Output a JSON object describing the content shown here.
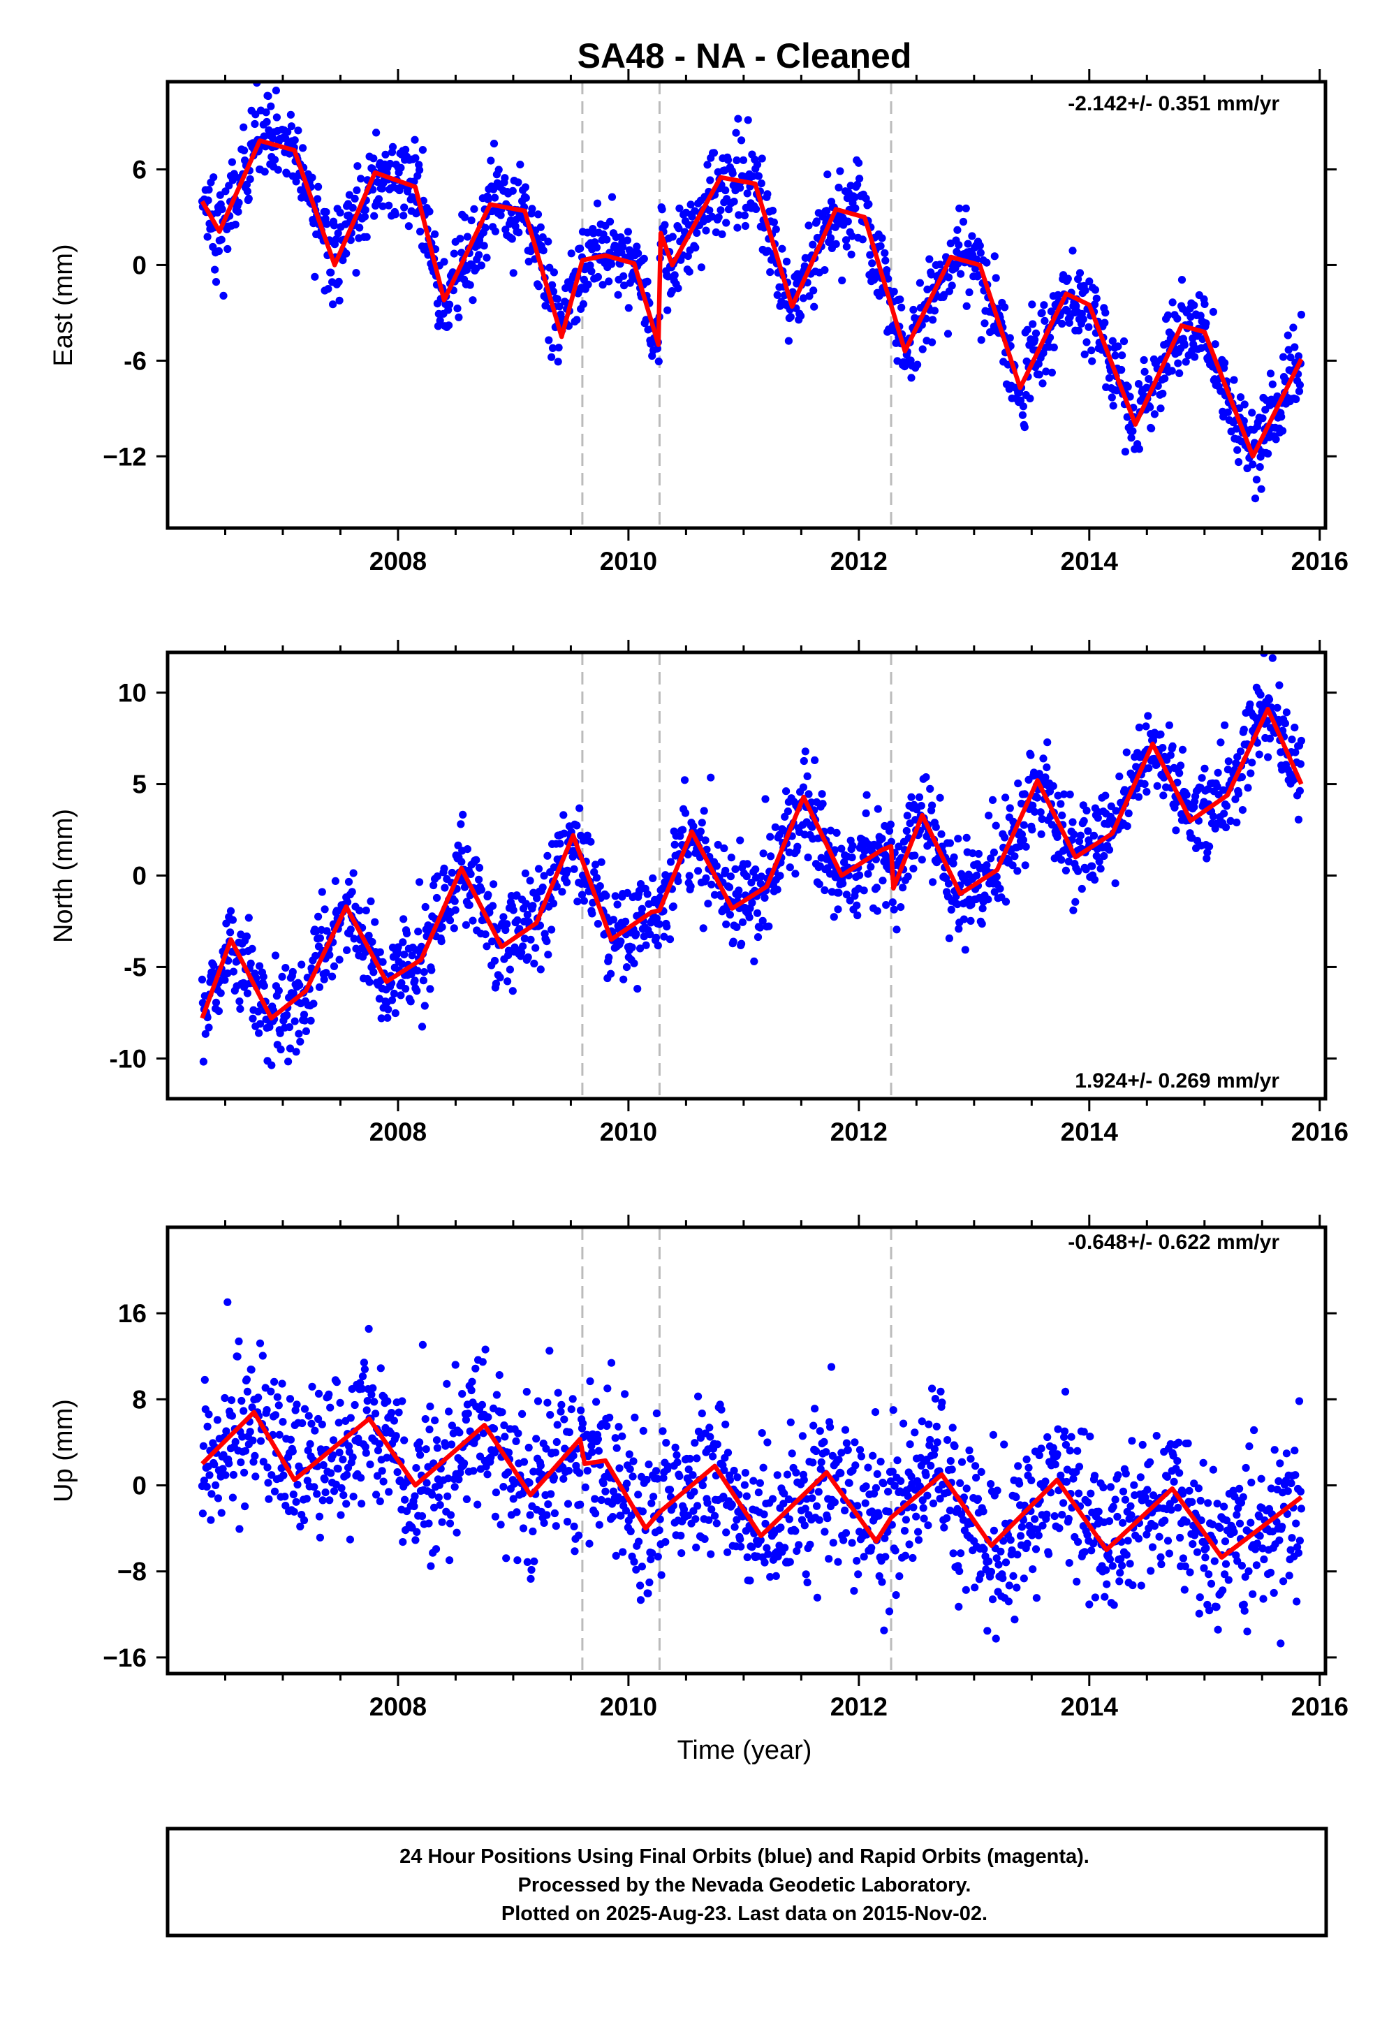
{
  "title": "SA48  - NA - Cleaned",
  "colors": {
    "data": "#0000ff",
    "model": "#ff0000",
    "axes": "#000000",
    "breaks": "#bbbbbb"
  },
  "footer": {
    "line1": "24 Hour Positions Using Final Orbits (blue) and Rapid Orbits (magenta).",
    "line2": "Processed by the Nevada Geodetic Laboratory.",
    "line3": "Plotted on 2025-Aug-23. Last data on 2015-Nov-02."
  },
  "chart_data": [
    {
      "type": "scatter",
      "ylabel": "East (mm)",
      "xlabel": "",
      "rate_label": "-2.142+/- 0.351 mm/yr",
      "rate_position": "top-right",
      "xlim": [
        2006.0,
        2016.05
      ],
      "ylim": [
        -16.5,
        11.5
      ],
      "x_ticks": [
        2008,
        2010,
        2012,
        2014,
        2016
      ],
      "y_ticks": [
        6,
        0,
        -6,
        -12
      ],
      "y_tick_labels": [
        "6",
        "0",
        "-6",
        "−12"
      ],
      "breaks": [
        2009.6,
        2010.27,
        2012.28
      ],
      "trend": {
        "slope_mm_per_yr": -2.142,
        "value_at_2006.3": 4.0
      },
      "seasonal": {
        "annual_amplitude_mm": 4.5,
        "annual_peak_year_fraction": 0.8
      },
      "data_x_range": [
        2006.3,
        2015.84
      ],
      "scatter_sigma_mm": 1.4,
      "series": [
        {
          "name": "Final Orbits (blue)",
          "kind": "daily positions"
        },
        {
          "name": "model",
          "kind": "fitted curve"
        }
      ],
      "model_curve": [
        [
          2006.3,
          4.0
        ],
        [
          2006.45,
          2.1
        ],
        [
          2006.8,
          7.8
        ],
        [
          2007.1,
          7.2
        ],
        [
          2007.45,
          0.0
        ],
        [
          2007.8,
          5.8
        ],
        [
          2008.15,
          4.9
        ],
        [
          2008.4,
          -2.2
        ],
        [
          2008.8,
          3.8
        ],
        [
          2009.1,
          3.4
        ],
        [
          2009.42,
          -4.5
        ],
        [
          2009.6,
          0.3
        ],
        [
          2009.8,
          0.6
        ],
        [
          2010.05,
          0.1
        ],
        [
          2010.26,
          -5.0
        ],
        [
          2010.28,
          2.0
        ],
        [
          2010.38,
          0.0
        ],
        [
          2010.8,
          5.5
        ],
        [
          2011.1,
          5.1
        ],
        [
          2011.42,
          -2.6
        ],
        [
          2011.8,
          3.5
        ],
        [
          2012.05,
          3.0
        ],
        [
          2012.4,
          -5.4
        ],
        [
          2012.8,
          0.5
        ],
        [
          2013.05,
          0.0
        ],
        [
          2013.4,
          -7.7
        ],
        [
          2013.8,
          -1.8
        ],
        [
          2014.0,
          -2.5
        ],
        [
          2014.4,
          -10.0
        ],
        [
          2014.8,
          -3.8
        ],
        [
          2015.0,
          -4.2
        ],
        [
          2015.42,
          -12.0
        ],
        [
          2015.84,
          -5.9
        ]
      ]
    },
    {
      "type": "scatter",
      "ylabel": "North (mm)",
      "xlabel": "",
      "rate_label": "1.924+/- 0.269 mm/yr",
      "rate_position": "bottom-right",
      "xlim": [
        2006.0,
        2016.05
      ],
      "ylim": [
        -12.2,
        12.2
      ],
      "x_ticks": [
        2008,
        2010,
        2012,
        2014,
        2016
      ],
      "y_ticks": [
        10,
        5,
        0,
        -5,
        -10
      ],
      "y_tick_labels": [
        "10",
        "5",
        "0",
        "-5",
        "-10"
      ],
      "breaks": [
        2009.6,
        2010.27,
        2012.28
      ],
      "trend": {
        "slope_mm_per_yr": 1.924,
        "value_at_2006.3": -8.0
      },
      "seasonal": {
        "annual_amplitude_mm": 2.5,
        "annual_peak_year_fraction": 0.55
      },
      "data_x_range": [
        2006.3,
        2015.84
      ],
      "scatter_sigma_mm": 1.3,
      "series": [
        {
          "name": "Final Orbits (blue)",
          "kind": "daily positions"
        },
        {
          "name": "model",
          "kind": "fitted curve"
        }
      ],
      "model_curve": [
        [
          2006.3,
          -7.8
        ],
        [
          2006.55,
          -3.5
        ],
        [
          2006.9,
          -7.8
        ],
        [
          2007.2,
          -6.3
        ],
        [
          2007.55,
          -1.7
        ],
        [
          2007.9,
          -5.8
        ],
        [
          2008.2,
          -4.6
        ],
        [
          2008.55,
          0.4
        ],
        [
          2008.9,
          -3.9
        ],
        [
          2009.2,
          -2.6
        ],
        [
          2009.52,
          2.2
        ],
        [
          2009.85,
          -3.5
        ],
        [
          2010.2,
          -2.0
        ],
        [
          2010.27,
          -1.9
        ],
        [
          2010.55,
          2.4
        ],
        [
          2010.9,
          -1.8
        ],
        [
          2011.2,
          -0.6
        ],
        [
          2011.52,
          4.3
        ],
        [
          2011.85,
          0.0
        ],
        [
          2012.2,
          1.4
        ],
        [
          2012.28,
          1.6
        ],
        [
          2012.3,
          -0.7
        ],
        [
          2012.55,
          3.3
        ],
        [
          2012.88,
          -1.0
        ],
        [
          2013.2,
          0.3
        ],
        [
          2013.55,
          5.2
        ],
        [
          2013.88,
          1.0
        ],
        [
          2014.2,
          2.3
        ],
        [
          2014.55,
          7.2
        ],
        [
          2014.88,
          3.0
        ],
        [
          2015.2,
          4.4
        ],
        [
          2015.55,
          9.1
        ],
        [
          2015.84,
          5.0
        ]
      ]
    },
    {
      "type": "scatter",
      "ylabel": "Up (mm)",
      "xlabel": "Time (year)",
      "rate_label": "-0.648+/- 0.622 mm/yr",
      "rate_position": "top-right",
      "xlim": [
        2006.0,
        2016.05
      ],
      "ylim": [
        -17.5,
        24.0
      ],
      "x_ticks": [
        2008,
        2010,
        2012,
        2014,
        2016
      ],
      "y_ticks": [
        16,
        8,
        0,
        -8,
        -16
      ],
      "y_tick_labels": [
        "16",
        "8",
        "0",
        "−8",
        "−16"
      ],
      "breaks": [
        2009.6,
        2010.27,
        2012.28
      ],
      "trend": {
        "slope_mm_per_yr": -0.648,
        "value_at_2006.3": 2.0
      },
      "seasonal": {
        "annual_amplitude_mm": 3.5,
        "annual_peak_year_fraction": 0.72
      },
      "data_x_range": [
        2006.3,
        2015.84
      ],
      "scatter_sigma_mm": 3.6,
      "series": [
        {
          "name": "Final Orbits (blue)",
          "kind": "daily positions"
        },
        {
          "name": "model",
          "kind": "fitted curve"
        }
      ],
      "model_curve": [
        [
          2006.3,
          2.0
        ],
        [
          2006.75,
          6.8
        ],
        [
          2007.1,
          0.5
        ],
        [
          2007.75,
          6.2
        ],
        [
          2008.15,
          0.0
        ],
        [
          2008.75,
          5.6
        ],
        [
          2009.15,
          -0.9
        ],
        [
          2009.58,
          4.3
        ],
        [
          2009.62,
          2.0
        ],
        [
          2009.8,
          2.3
        ],
        [
          2010.15,
          -4.0
        ],
        [
          2010.27,
          -2.5
        ],
        [
          2010.75,
          1.8
        ],
        [
          2011.15,
          -4.7
        ],
        [
          2011.72,
          1.2
        ],
        [
          2012.15,
          -5.2
        ],
        [
          2012.28,
          -3.0
        ],
        [
          2012.72,
          1.0
        ],
        [
          2013.15,
          -5.6
        ],
        [
          2013.72,
          0.5
        ],
        [
          2014.15,
          -6.0
        ],
        [
          2014.72,
          -0.3
        ],
        [
          2015.15,
          -6.7
        ],
        [
          2015.84,
          -1.1
        ]
      ]
    }
  ]
}
